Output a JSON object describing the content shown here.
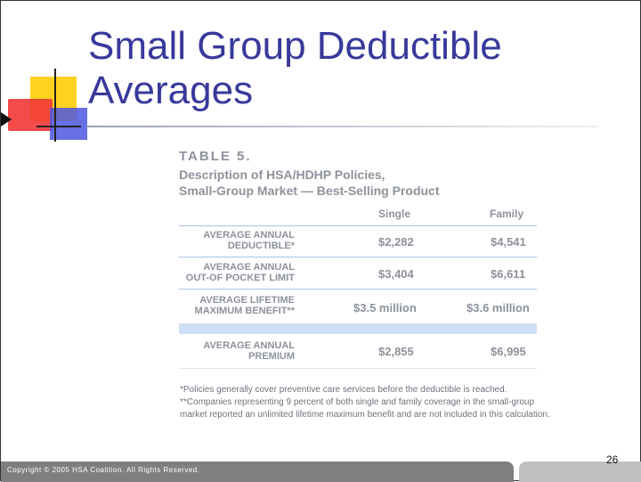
{
  "slide": {
    "title": "Small Group Deductible Averages",
    "title_line1": "Small Group Deductible",
    "title_line2": "Averages",
    "footer": "Copyright © 2005 HSA Coalition. All Rights Reserved.",
    "page_number": "26"
  },
  "table": {
    "label": "TABLE 5.",
    "description_line1": "Description of HSA/HDHP Policies,",
    "description_line2": "Small-Group Market — Best-Selling Product",
    "columns": [
      "Single",
      "Family"
    ],
    "rows": [
      {
        "label_line1": "AVERAGE ANNUAL",
        "label_line2": "DEDUCTIBLE*",
        "single": "$2,282",
        "family": "$4,541"
      },
      {
        "label_line1": "AVERAGE ANNUAL",
        "label_line2": "OUT-OF POCKET LIMIT",
        "single": "$3,404",
        "family": "$6,611"
      },
      {
        "label_line1": "AVERAGE LIFETIME",
        "label_line2": "MAXIMUM BENEFIT**",
        "single": "$3.5 million",
        "family": "$3.6 million"
      },
      {
        "label_line1": "AVERAGE ANNUAL",
        "label_line2": "PREMIUM",
        "single": "$2,855",
        "family": "$6,995"
      }
    ],
    "note1": "*Policies generally cover preventive care services before the deductible is reached.",
    "note2_line1": "**Companies representing 9 percent of both single and family coverage in the small-group",
    "note2_line2": "market reported an unlimited lifetime maximum benefit and are not included in this calculation."
  },
  "colors": {
    "title": "#38399b",
    "accent_yellow": "#ffd21f",
    "accent_red": "#f23636",
    "accent_blue": "#4e57e0",
    "row_rule": "#a9c3e6"
  }
}
